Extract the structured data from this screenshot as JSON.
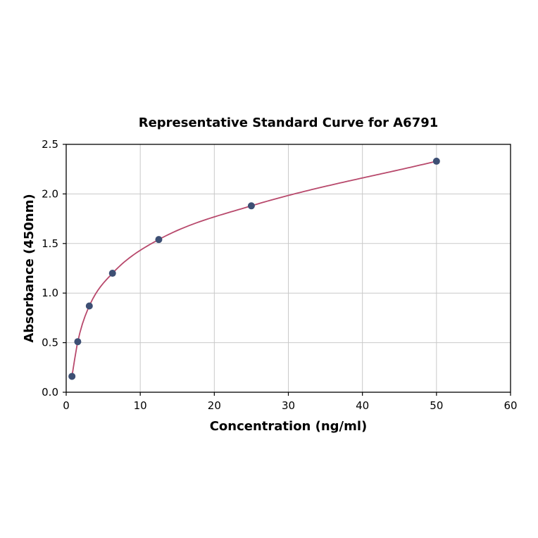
{
  "chart_data": {
    "type": "scatter",
    "title": "Representative Standard Curve for A6791",
    "xlabel": "Concentration (ng/ml)",
    "ylabel": "Absorbance (450nm)",
    "x": [
      0.78,
      1.56,
      3.12,
      6.25,
      12.5,
      25,
      50
    ],
    "y": [
      0.16,
      0.51,
      0.87,
      1.2,
      1.54,
      1.88,
      2.33
    ],
    "xlim": [
      0,
      60
    ],
    "ylim": [
      0,
      2.5
    ],
    "xticks": [
      0,
      10,
      20,
      30,
      40,
      50,
      60
    ],
    "yticks": [
      0.0,
      0.5,
      1.0,
      1.5,
      2.0,
      2.5
    ],
    "grid": true,
    "legend": "none",
    "curve_color": "#b8496c",
    "point_color": "#3d4f74",
    "grid_color": "#c9c9c9",
    "spine_color": "#000000"
  }
}
